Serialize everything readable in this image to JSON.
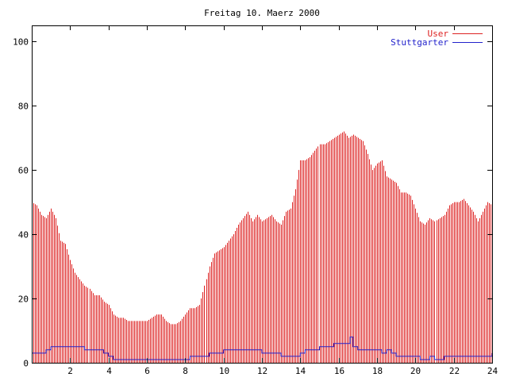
{
  "chart_data": {
    "type": "bar",
    "title": "Freitag 10. Maerz 2000",
    "xlabel": "",
    "ylabel": "",
    "xlim": [
      0,
      24
    ],
    "ylim": [
      0,
      105
    ],
    "x_ticks": [
      2,
      4,
      6,
      8,
      10,
      12,
      14,
      16,
      18,
      20,
      22,
      24
    ],
    "y_ticks": [
      0,
      20,
      40,
      60,
      80,
      100
    ],
    "grid": false,
    "legend_position": "top-right",
    "colors": {
      "user": "#dd2222",
      "stuttgarter": "#2222cc",
      "axis": "#000000"
    },
    "series": [
      {
        "name": "User",
        "style": "impulses",
        "points": [
          [
            0.0,
            50
          ],
          [
            0.25,
            49
          ],
          [
            0.5,
            46
          ],
          [
            0.75,
            45
          ],
          [
            1.0,
            48
          ],
          [
            1.25,
            45
          ],
          [
            1.5,
            38
          ],
          [
            1.75,
            37
          ],
          [
            2.0,
            32
          ],
          [
            2.25,
            28
          ],
          [
            2.5,
            26
          ],
          [
            2.75,
            24
          ],
          [
            3.0,
            23
          ],
          [
            3.25,
            21
          ],
          [
            3.5,
            21
          ],
          [
            3.75,
            19
          ],
          [
            4.0,
            18
          ],
          [
            4.25,
            15
          ],
          [
            4.5,
            14
          ],
          [
            4.75,
            14
          ],
          [
            5.0,
            13
          ],
          [
            5.25,
            13
          ],
          [
            5.5,
            13
          ],
          [
            5.75,
            13
          ],
          [
            6.0,
            13
          ],
          [
            6.25,
            14
          ],
          [
            6.5,
            15
          ],
          [
            6.75,
            15
          ],
          [
            7.0,
            13
          ],
          [
            7.25,
            12
          ],
          [
            7.5,
            12
          ],
          [
            7.75,
            13
          ],
          [
            8.0,
            15
          ],
          [
            8.25,
            17
          ],
          [
            8.5,
            17
          ],
          [
            8.75,
            18
          ],
          [
            9.0,
            24
          ],
          [
            9.25,
            30
          ],
          [
            9.5,
            34
          ],
          [
            9.75,
            35
          ],
          [
            10.0,
            36
          ],
          [
            10.25,
            38
          ],
          [
            10.5,
            40
          ],
          [
            10.75,
            43
          ],
          [
            11.0,
            45
          ],
          [
            11.25,
            47
          ],
          [
            11.5,
            44
          ],
          [
            11.75,
            46
          ],
          [
            12.0,
            44
          ],
          [
            12.25,
            45
          ],
          [
            12.5,
            46
          ],
          [
            12.75,
            44
          ],
          [
            13.0,
            43
          ],
          [
            13.25,
            47
          ],
          [
            13.5,
            48
          ],
          [
            13.75,
            54
          ],
          [
            14.0,
            63
          ],
          [
            14.25,
            63
          ],
          [
            14.5,
            64
          ],
          [
            14.75,
            66
          ],
          [
            15.0,
            68
          ],
          [
            15.25,
            68
          ],
          [
            15.5,
            69
          ],
          [
            15.75,
            70
          ],
          [
            16.0,
            71
          ],
          [
            16.25,
            72
          ],
          [
            16.5,
            70
          ],
          [
            16.75,
            71
          ],
          [
            17.0,
            70
          ],
          [
            17.25,
            69
          ],
          [
            17.5,
            65
          ],
          [
            17.75,
            60
          ],
          [
            18.0,
            62
          ],
          [
            18.25,
            63
          ],
          [
            18.5,
            58
          ],
          [
            18.75,
            57
          ],
          [
            19.0,
            56
          ],
          [
            19.25,
            53
          ],
          [
            19.5,
            53
          ],
          [
            19.75,
            52
          ],
          [
            20.0,
            48
          ],
          [
            20.25,
            44
          ],
          [
            20.5,
            43
          ],
          [
            20.75,
            45
          ],
          [
            21.0,
            44
          ],
          [
            21.25,
            45
          ],
          [
            21.5,
            46
          ],
          [
            21.75,
            49
          ],
          [
            22.0,
            50
          ],
          [
            22.25,
            50
          ],
          [
            22.5,
            51
          ],
          [
            22.75,
            49
          ],
          [
            23.0,
            47
          ],
          [
            23.25,
            44
          ],
          [
            23.5,
            47
          ],
          [
            23.75,
            50
          ],
          [
            24.0,
            49
          ]
        ]
      },
      {
        "name": "Stuttgarter",
        "style": "steps",
        "points": [
          [
            0.0,
            3
          ],
          [
            0.5,
            3
          ],
          [
            0.75,
            4
          ],
          [
            1.0,
            5
          ],
          [
            2.5,
            5
          ],
          [
            2.75,
            4
          ],
          [
            3.5,
            4
          ],
          [
            3.75,
            3
          ],
          [
            4.0,
            2
          ],
          [
            4.25,
            1
          ],
          [
            8.0,
            1
          ],
          [
            8.25,
            2
          ],
          [
            9.0,
            2
          ],
          [
            9.25,
            3
          ],
          [
            9.75,
            3
          ],
          [
            10.0,
            4
          ],
          [
            11.75,
            4
          ],
          [
            12.0,
            3
          ],
          [
            12.75,
            3
          ],
          [
            13.0,
            2
          ],
          [
            13.75,
            2
          ],
          [
            14.0,
            3
          ],
          [
            14.25,
            4
          ],
          [
            14.75,
            4
          ],
          [
            15.0,
            5
          ],
          [
            15.5,
            5
          ],
          [
            15.75,
            6
          ],
          [
            16.5,
            6
          ],
          [
            16.6,
            8
          ],
          [
            16.75,
            5
          ],
          [
            17.0,
            4
          ],
          [
            18.0,
            4
          ],
          [
            18.25,
            3
          ],
          [
            18.5,
            4
          ],
          [
            18.75,
            3
          ],
          [
            19.0,
            2
          ],
          [
            20.0,
            2
          ],
          [
            20.25,
            1
          ],
          [
            20.75,
            2
          ],
          [
            21.0,
            1
          ],
          [
            21.5,
            2
          ],
          [
            23.75,
            2
          ],
          [
            24.0,
            3
          ]
        ]
      }
    ]
  }
}
